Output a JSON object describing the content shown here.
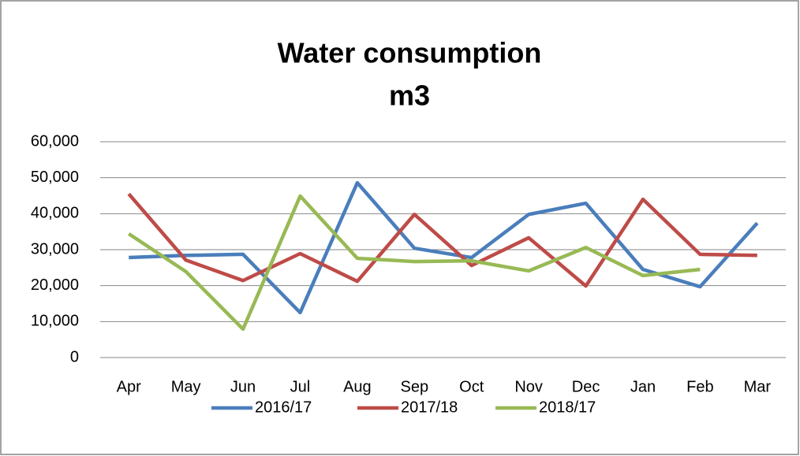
{
  "chart_data": {
    "type": "line",
    "title": [
      "Water consumption",
      "m3"
    ],
    "categories": [
      "Apr",
      "May",
      "Jun",
      "Jul",
      "Aug",
      "Sep",
      "Oct",
      "Nov",
      "Dec",
      "Jan",
      "Feb",
      "Mar"
    ],
    "series": [
      {
        "name": "2016/17",
        "color": "#4a7ebb",
        "values": [
          27800,
          28400,
          28700,
          12500,
          48600,
          30400,
          27800,
          39800,
          42900,
          24500,
          19700,
          37400
        ]
      },
      {
        "name": "2017/18",
        "color": "#be4b48",
        "values": [
          45500,
          27100,
          21400,
          28900,
          21200,
          39800,
          25600,
          33300,
          19900,
          44000,
          28700,
          28400
        ]
      },
      {
        "name": "2018/17",
        "color": "#98b954",
        "values": [
          34400,
          23900,
          7900,
          44900,
          27600,
          26700,
          26900,
          24100,
          30600,
          22800,
          24500,
          null
        ]
      }
    ],
    "ylim": [
      0,
      60000
    ],
    "yticks": [
      0,
      {
        "value": 10000,
        "label": "10,000"
      },
      {
        "value": 20000,
        "label": "20,000"
      },
      {
        "value": 30000,
        "label": "30,000"
      },
      {
        "value": 40000,
        "label": "40,000"
      },
      {
        "value": 50000,
        "label": "50,000"
      },
      {
        "value": 60000,
        "label": "60,000"
      }
    ],
    "grid": true,
    "legend": "bottom"
  }
}
